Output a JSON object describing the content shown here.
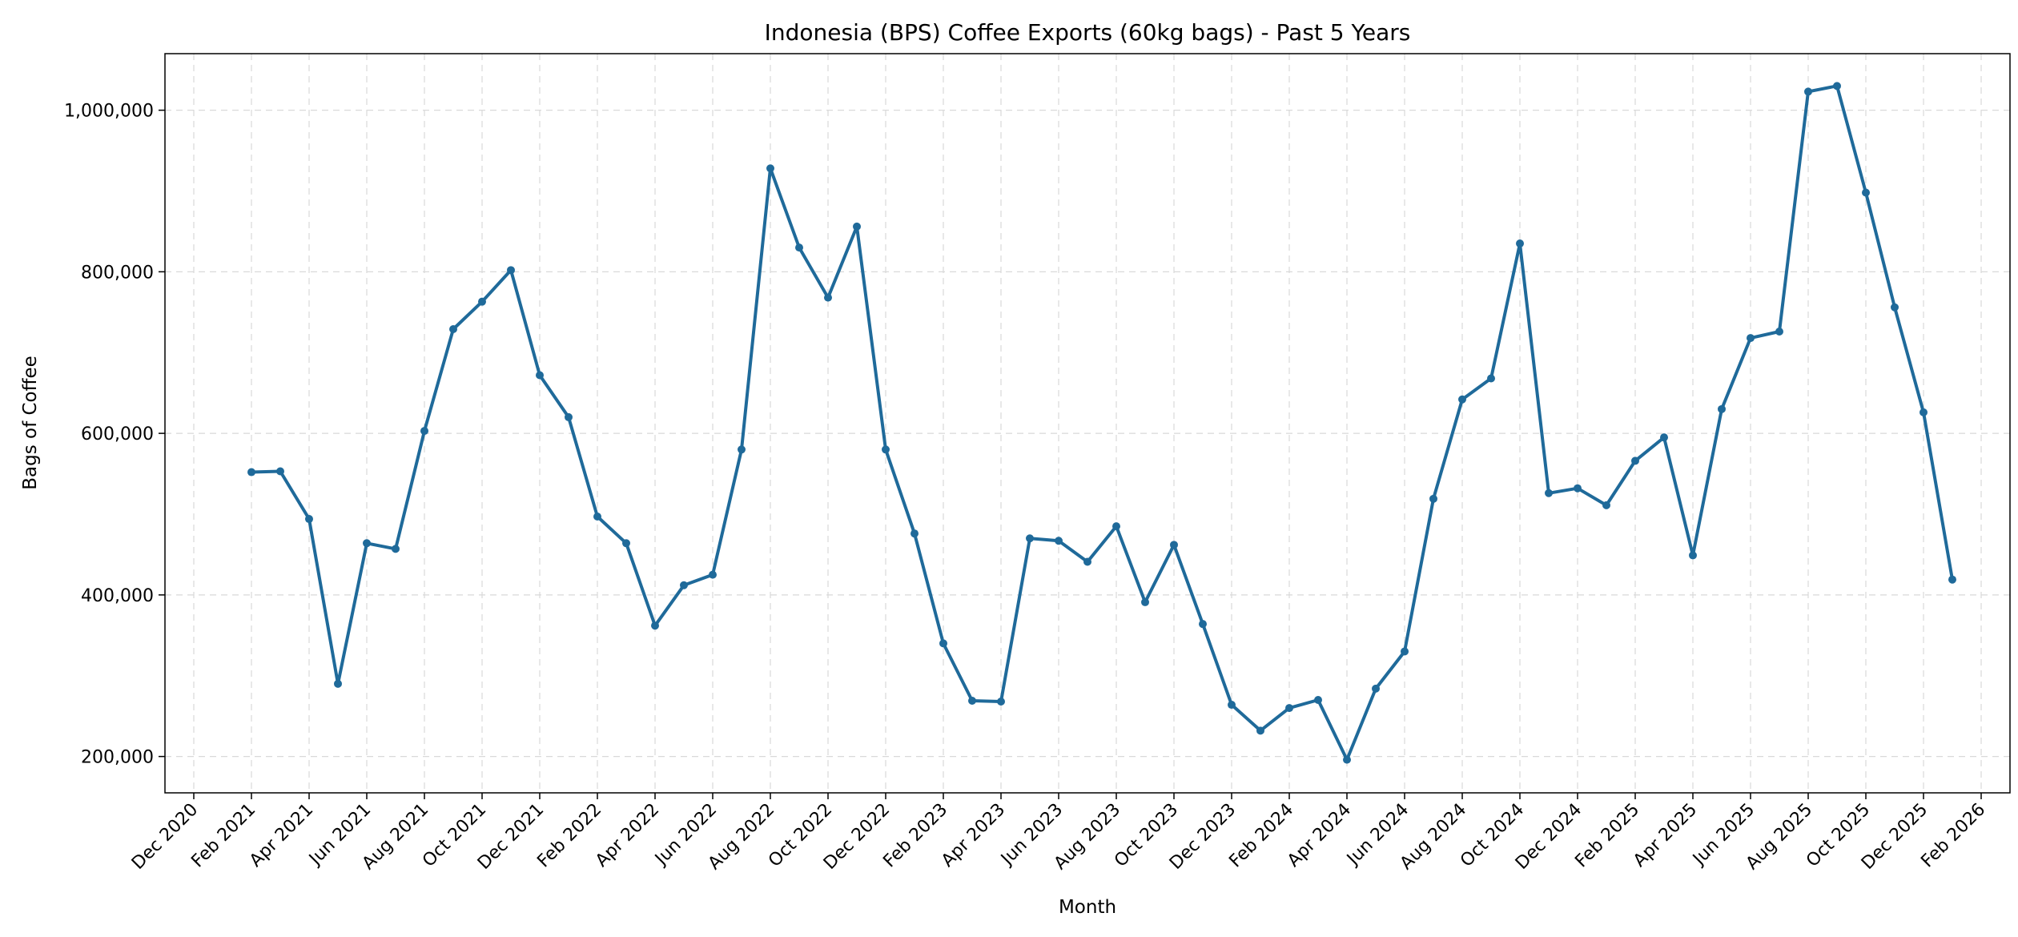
{
  "chart_data": {
    "type": "line",
    "title": "Indonesia (BPS) Coffee Exports (60kg bags) - Past 5 Years",
    "xlabel": "Month",
    "ylabel": "Bags of Coffee",
    "x_range": [
      "2020-11",
      "2026-03"
    ],
    "ylim": [
      155000,
      1070000
    ],
    "grid": true,
    "legend": "none",
    "line_color": "#1f6a9a",
    "x_ticks": [
      {
        "date": "2020-12",
        "label": "Dec 2020"
      },
      {
        "date": "2021-02",
        "label": "Feb 2021"
      },
      {
        "date": "2021-04",
        "label": "Apr 2021"
      },
      {
        "date": "2021-06",
        "label": "Jun 2021"
      },
      {
        "date": "2021-08",
        "label": "Aug 2021"
      },
      {
        "date": "2021-10",
        "label": "Oct 2021"
      },
      {
        "date": "2021-12",
        "label": "Dec 2021"
      },
      {
        "date": "2022-02",
        "label": "Feb 2022"
      },
      {
        "date": "2022-04",
        "label": "Apr 2022"
      },
      {
        "date": "2022-06",
        "label": "Jun 2022"
      },
      {
        "date": "2022-08",
        "label": "Aug 2022"
      },
      {
        "date": "2022-10",
        "label": "Oct 2022"
      },
      {
        "date": "2022-12",
        "label": "Dec 2022"
      },
      {
        "date": "2023-02",
        "label": "Feb 2023"
      },
      {
        "date": "2023-04",
        "label": "Apr 2023"
      },
      {
        "date": "2023-06",
        "label": "Jun 2023"
      },
      {
        "date": "2023-08",
        "label": "Aug 2023"
      },
      {
        "date": "2023-10",
        "label": "Oct 2023"
      },
      {
        "date": "2023-12",
        "label": "Dec 2023"
      },
      {
        "date": "2024-02",
        "label": "Feb 2024"
      },
      {
        "date": "2024-04",
        "label": "Apr 2024"
      },
      {
        "date": "2024-06",
        "label": "Jun 2024"
      },
      {
        "date": "2024-08",
        "label": "Aug 2024"
      },
      {
        "date": "2024-10",
        "label": "Oct 2024"
      },
      {
        "date": "2024-12",
        "label": "Dec 2024"
      },
      {
        "date": "2025-02",
        "label": "Feb 2025"
      },
      {
        "date": "2025-04",
        "label": "Apr 2025"
      },
      {
        "date": "2025-06",
        "label": "Jun 2025"
      },
      {
        "date": "2025-08",
        "label": "Aug 2025"
      },
      {
        "date": "2025-10",
        "label": "Oct 2025"
      },
      {
        "date": "2025-12",
        "label": "Dec 2025"
      },
      {
        "date": "2026-02",
        "label": "Feb 2026"
      }
    ],
    "y_ticks": [
      {
        "value": 200000,
        "label": "200,000"
      },
      {
        "value": 400000,
        "label": "400,000"
      },
      {
        "value": 600000,
        "label": "600,000"
      },
      {
        "value": 800000,
        "label": "800,000"
      },
      {
        "value": 1000000,
        "label": "1,000,000"
      }
    ],
    "series": [
      {
        "x": [
          "2021-02",
          "2021-03",
          "2021-04",
          "2021-05",
          "2021-06",
          "2021-07",
          "2021-08",
          "2021-09",
          "2021-10",
          "2021-11",
          "2021-12",
          "2022-01",
          "2022-02",
          "2022-03",
          "2022-04",
          "2022-05",
          "2022-06",
          "2022-07",
          "2022-08",
          "2022-09",
          "2022-10",
          "2022-11",
          "2022-12",
          "2023-01",
          "2023-02",
          "2023-03",
          "2023-04",
          "2023-05",
          "2023-06",
          "2023-07",
          "2023-08",
          "2023-09",
          "2023-10",
          "2023-11",
          "2023-12",
          "2024-01",
          "2024-02",
          "2024-03",
          "2024-04",
          "2024-05",
          "2024-06",
          "2024-07",
          "2024-08",
          "2024-09",
          "2024-10",
          "2024-11",
          "2024-12",
          "2025-01",
          "2025-02",
          "2025-03",
          "2025-04",
          "2025-05",
          "2025-06",
          "2025-07",
          "2025-08",
          "2025-09",
          "2025-10",
          "2025-11",
          "2025-12",
          "2026-01"
        ],
        "values": [
          552000,
          553000,
          494000,
          290000,
          464000,
          457000,
          603000,
          729000,
          763000,
          802000,
          672000,
          620000,
          497000,
          464000,
          362000,
          412000,
          425000,
          580000,
          928000,
          830000,
          768000,
          856000,
          580000,
          476000,
          340000,
          269000,
          268000,
          470000,
          467000,
          441000,
          485000,
          391000,
          462000,
          364000,
          264000,
          232000,
          260000,
          270000,
          196000,
          284000,
          330000,
          519000,
          642000,
          668000,
          835000,
          526000,
          532000,
          511000,
          566000,
          595000,
          449000,
          630000,
          718000,
          726000,
          1023000,
          1030000,
          898000,
          756000,
          626000,
          419000
        ]
      }
    ]
  }
}
